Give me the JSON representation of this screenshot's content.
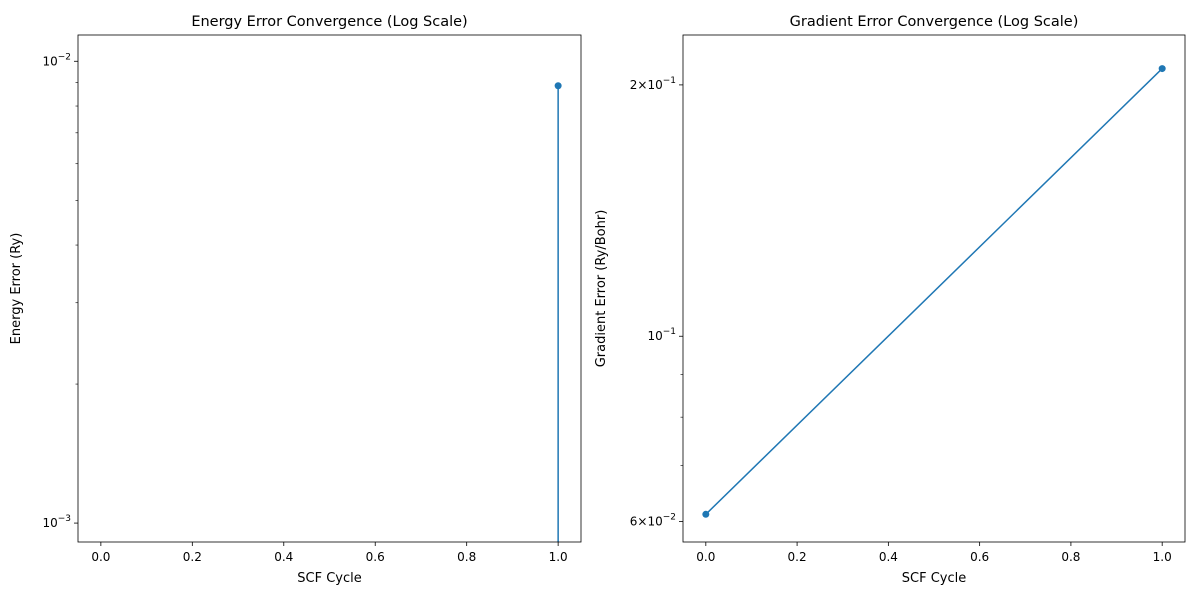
{
  "chart_data": [
    {
      "type": "line",
      "title": "Energy Error Convergence (Log Scale)",
      "xlabel": "SCF Cycle",
      "ylabel": "Energy Error (Ry)",
      "yscale": "log",
      "xlim": [
        -0.05,
        1.05
      ],
      "ylim": [
        0.00091,
        0.0114
      ],
      "grid": false,
      "color": "#1f77b4",
      "x_ticks": [
        {
          "value": 0.0,
          "label": "0.0"
        },
        {
          "value": 0.2,
          "label": "0.2"
        },
        {
          "value": 0.4,
          "label": "0.4"
        },
        {
          "value": 0.6,
          "label": "0.6"
        },
        {
          "value": 0.8,
          "label": "0.8"
        },
        {
          "value": 1.0,
          "label": "1.0"
        }
      ],
      "y_major_ticks": [
        {
          "value": 0.001,
          "base": "10",
          "exp": "−3"
        },
        {
          "value": 0.01,
          "base": "10",
          "exp": "−2"
        }
      ],
      "y_minor_ticks": [
        0.002,
        0.003,
        0.004,
        0.005,
        0.006,
        0.007,
        0.008,
        0.009
      ],
      "series": [
        {
          "x": [
            1.0
          ],
          "y": [
            0.00885
          ],
          "marker": true
        },
        {
          "x": [
            1.0,
            1.0
          ],
          "y": [
            0.00885,
            0.00091
          ],
          "marker": false
        }
      ]
    },
    {
      "type": "line",
      "title": "Gradient Error Convergence (Log Scale)",
      "xlabel": "SCF Cycle",
      "ylabel": "Gradient Error (Ry/Bohr)",
      "yscale": "log",
      "xlim": [
        -0.05,
        1.05
      ],
      "ylim": [
        0.0567,
        0.2295
      ],
      "grid": false,
      "color": "#1f77b4",
      "x_ticks": [
        {
          "value": 0.0,
          "label": "0.0"
        },
        {
          "value": 0.2,
          "label": "0.2"
        },
        {
          "value": 0.4,
          "label": "0.4"
        },
        {
          "value": 0.6,
          "label": "0.6"
        },
        {
          "value": 0.8,
          "label": "0.8"
        },
        {
          "value": 1.0,
          "label": "1.0"
        }
      ],
      "y_major_ticks": [
        {
          "value": 0.06,
          "base": "6×10",
          "exp": "−2"
        },
        {
          "value": 0.1,
          "base": "10",
          "exp": "−1"
        },
        {
          "value": 0.2,
          "base": "2×10",
          "exp": "−1"
        }
      ],
      "y_minor_ticks": [
        0.07,
        0.08,
        0.09
      ],
      "series": [
        {
          "x": [
            0.0,
            1.0
          ],
          "y": [
            0.0612,
            0.2092
          ],
          "marker": true
        }
      ]
    }
  ]
}
